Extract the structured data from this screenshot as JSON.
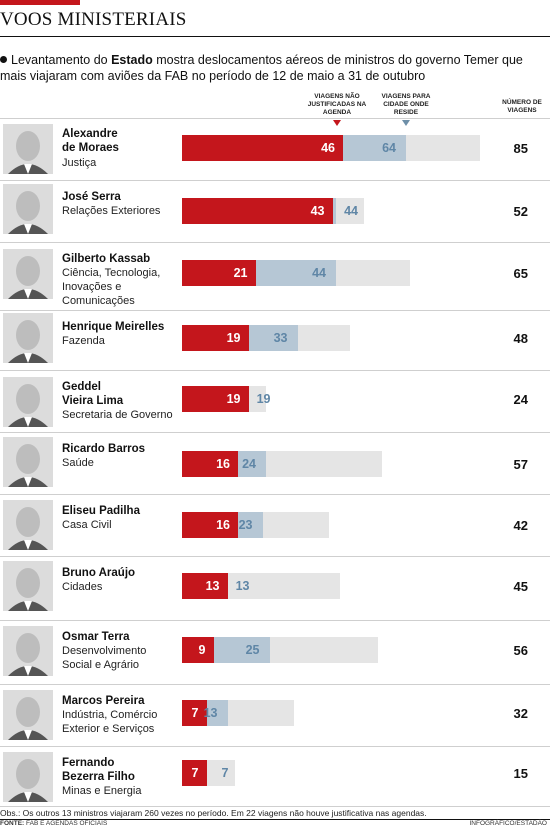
{
  "header": {
    "title": "VOOS MINISTERIAIS",
    "subtitle_pre": "Levantamento do ",
    "subtitle_bold": "Estado",
    "subtitle_post": " mostra deslocamentos aéreos de ministros do governo Temer que mais viajaram com aviões da FAB no período de 12 de maio a 31 de outubro"
  },
  "legend": {
    "unjustified": "VIAGENS NÃO JUSTIFICADAS NA AGENDA",
    "home_city": "VIAGENS PARA CIDADE ONDE RESIDE",
    "total": "NÚMERO DE VIAGENS"
  },
  "colors": {
    "unjustified": "#c4161c",
    "home_city": "#b6c7d5",
    "total_background": "#e5e5e5",
    "home_city_label": "#5f86a6"
  },
  "chart_data": {
    "type": "bar",
    "orientation": "horizontal",
    "categories": [
      "Alexandre de Moraes",
      "José Serra",
      "Gilberto Kassab",
      "Henrique Meirelles",
      "Geddel Vieira Lima",
      "Ricardo Barros",
      "Eliseu Padilha",
      "Bruno Araújo",
      "Osmar Terra",
      "Marcos Pereira",
      "Fernando Bezerra Filho"
    ],
    "series": [
      {
        "name": "VIAGENS NÃO JUSTIFICADAS NA AGENDA",
        "values": [
          46,
          43,
          21,
          19,
          19,
          16,
          16,
          13,
          9,
          7,
          7
        ]
      },
      {
        "name": "VIAGENS PARA CIDADE ONDE RESIDE",
        "values": [
          64,
          44,
          44,
          33,
          19,
          24,
          23,
          13,
          25,
          13,
          7
        ]
      },
      {
        "name": "NÚMERO DE VIAGENS",
        "values": [
          85,
          52,
          65,
          48,
          24,
          57,
          42,
          45,
          56,
          32,
          15
        ]
      }
    ],
    "xlim": [
      0,
      85
    ]
  },
  "ministers": [
    {
      "name": "Alexandre de Moraes",
      "role": "Justiça"
    },
    {
      "name": "José Serra",
      "role": "Relações Exteriores"
    },
    {
      "name": "Gilberto Kassab",
      "role": "Ciência, Tecnologia, Inovações e Comunicações"
    },
    {
      "name": "Henrique Meirelles",
      "role": "Fazenda"
    },
    {
      "name": "Geddel Vieira Lima",
      "role": "Secretaria de Governo"
    },
    {
      "name": "Ricardo Barros",
      "role": "Saúde"
    },
    {
      "name": "Eliseu Padilha",
      "role": "Casa Civil"
    },
    {
      "name": "Bruno Araújo",
      "role": "Cidades"
    },
    {
      "name": "Osmar Terra",
      "role": "Desenvolvimento Social e Agrário"
    },
    {
      "name": "Marcos Pereira",
      "role": "Indústria, Comércio Exterior e Serviços"
    },
    {
      "name": "Fernando Bezerra Filho",
      "role": "Minas e Energia"
    }
  ],
  "footer": {
    "obs": "Obs.: Os outros 13 ministros viajaram 260 vezes no período. Em 22 viagens não houve justificativa nas agendas.",
    "source_label": "FONTE:",
    "source": "FAB E AGENDAS OFICIAIS",
    "credit": "INFOGRÁFICO/ESTADÃO"
  }
}
